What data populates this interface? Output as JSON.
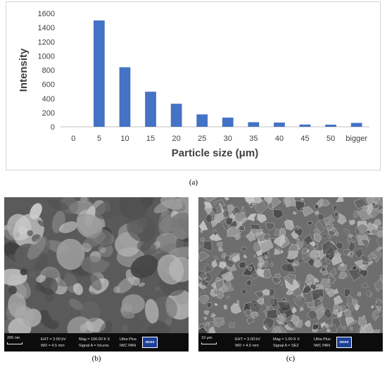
{
  "chart_data": {
    "type": "bar",
    "categories": [
      "0",
      "5",
      "10",
      "15",
      "20",
      "25",
      "30",
      "35",
      "40",
      "45",
      "50",
      "bigger"
    ],
    "values": [
      0,
      1500,
      840,
      495,
      325,
      175,
      130,
      65,
      60,
      32,
      30,
      55
    ],
    "xlabel": "Particle size (μm)",
    "ylabel": "Intensity",
    "ylim": [
      0,
      1600
    ],
    "yticks": [
      0,
      200,
      400,
      600,
      800,
      1000,
      1200,
      1400,
      1600
    ],
    "bar_color": "#4472c4",
    "grid": false,
    "legend": "none"
  },
  "captions": {
    "a": "(a)",
    "b": "(b)",
    "c": "(c)"
  },
  "sem_b": {
    "scale_label": "200 nm",
    "eht": "EHT = 3.00 kV",
    "wd": "WD = 4.5 mm",
    "mag": "Mag = 100.00 K X",
    "signal": "Signal A = InLens",
    "detector": "Ultra Plus",
    "institution": "IWC PAN",
    "logo": "ZEISS"
  },
  "sem_c": {
    "scale_label": "10 μm",
    "eht": "EHT = 3.00 kV",
    "wd": "WD = 4.5 mm",
    "mag": "Mag = 1.00 K X",
    "signal": "Signal A = SE2",
    "detector": "Ultra Plus",
    "institution": "IWC PAN",
    "logo": "ZEISS"
  }
}
